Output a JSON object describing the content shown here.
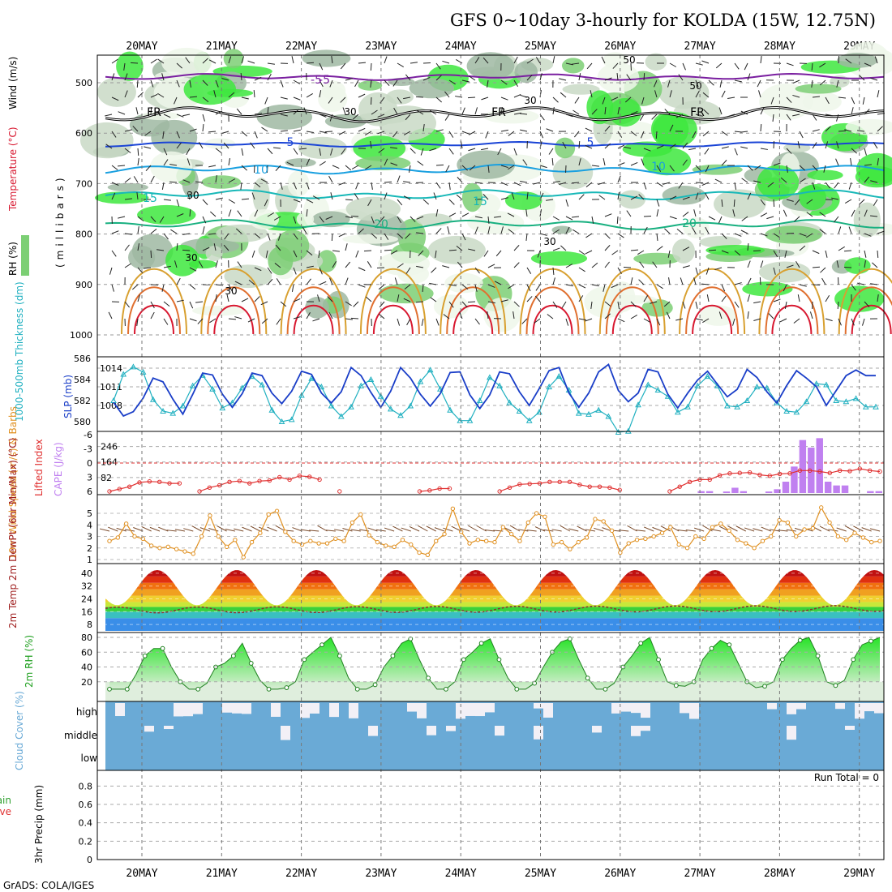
{
  "title": "GFS 0~10day 3-hourly for KOLDA (15W, 12.75N)",
  "credit": "GrADS: COLA/IGES",
  "colors": {
    "rh": [
      "#eef7ea",
      "#c9d9c6",
      "#9fb8a2",
      "#7ccf74",
      "#3ee83e"
    ],
    "temp_contours": [
      "#7a1fa0",
      "#1a44d6",
      "#1aa0e0",
      "#18b8b8",
      "#18b080",
      "#d8a030",
      "#e07030",
      "#d81830"
    ],
    "slp": "#1a3ec8",
    "thickness": "#20b0c0",
    "lifted": "#e03030",
    "cape": "#c080f0",
    "wind_speed": "#e09020",
    "barbs": "#7a4a2a",
    "rh2m": "#40c040",
    "cloud": "#6aaad6",
    "cloud_clear": "#f2f0f6"
  },
  "chart_data": [
    {
      "panel": "upper-air",
      "type": "heatmap",
      "x": [
        "20MAY",
        "21MAY",
        "22MAY",
        "23MAY",
        "24MAY",
        "25MAY",
        "26MAY",
        "27MAY",
        "28MAY",
        "29MAY"
      ],
      "ylabel": "(millibars)",
      "yticks": [
        "500",
        "600",
        "700",
        "800",
        "900",
        "1000"
      ],
      "label_rh": "RH (%)",
      "label_temp": "Temperature (°C)",
      "label_wind": "Wind (m/s)",
      "contour_labels": [
        "-5",
        "-5",
        "FR",
        "FR",
        "FR",
        "5",
        "5",
        "10",
        "10",
        "15",
        "15",
        "20",
        "20",
        "30",
        "30",
        "30",
        "30",
        "30",
        "30",
        "50",
        "50"
      ]
    },
    {
      "panel": "slp-thickness",
      "type": "line",
      "y1label": "1000-500mb Thickness (dm)",
      "y2label": "SLP (mb)",
      "y1ticks": [
        "586",
        "584",
        "582",
        "580"
      ],
      "y2ticks": [
        "1014",
        "1011",
        "1008"
      ],
      "slp": [
        1008.5,
        1006.3,
        1007.0,
        1009.2,
        1012.4,
        1011.8,
        1009.0,
        1006.6,
        1009.8,
        1013.2,
        1012.9,
        1009.8,
        1007.7,
        1009.9,
        1013.2,
        1012.8,
        1010.0,
        1008.3,
        1010.3,
        1013.5,
        1013.0,
        1010.0,
        1008.4,
        1010.2,
        1014.1,
        1012.8,
        1010.1,
        1007.7,
        1010.3,
        1014.1,
        1012.4,
        1009.8,
        1007.9,
        1009.9,
        1013.3,
        1013.4,
        1009.7,
        1007.5,
        1009.7,
        1013.4,
        1013.1,
        1010.2,
        1008.0,
        1010.7,
        1013.6,
        1014.1,
        1010.0,
        1007.7,
        1010.0,
        1013.4,
        1014.6,
        1010.4,
        1008.6,
        1010.0,
        1013.8,
        1013.4,
        1009.8,
        1007.6,
        1010.0,
        1012.1,
        1013.5,
        1011.4,
        1009.4,
        1010.6,
        1013.8,
        1012.5,
        1010.2,
        1008.4,
        1011.2,
        1013.6,
        1012.4,
        1011.0,
        1008.0,
        1010.4,
        1012.8,
        1013.7,
        1012.8,
        1012.8
      ],
      "thickness": [
        582.0,
        584.5,
        585.2,
        584.7,
        582.1,
        581.0,
        580.8,
        581.5,
        583.4,
        584.4,
        583.1,
        581.3,
        581.8,
        583.2,
        584.3,
        583.5,
        581.1,
        580.0,
        580.2,
        582.5,
        584.1,
        583.3,
        581.5,
        580.5,
        581.4,
        583.4,
        584.0,
        582.4,
        581.2,
        580.6,
        581.5,
        583.8,
        584.9,
        583.1,
        581.1,
        580.1,
        580.1,
        582.0,
        584.2,
        583.4,
        581.8,
        581.0,
        580.1,
        580.9,
        583.3,
        584.3,
        583.0,
        580.8,
        580.7,
        581.1,
        580.5,
        579.0,
        579.1,
        581.6,
        583.5,
        583.0,
        582.4,
        580.9,
        581.4,
        583.4,
        584.3,
        583.4,
        581.5,
        581.4,
        582.0,
        583.3,
        583.2,
        581.8,
        581.0,
        580.9,
        581.9,
        583.6,
        583.5,
        582.0,
        581.9,
        582.2,
        581.4,
        581.4
      ]
    },
    {
      "panel": "stability",
      "type": "line",
      "y1label": "Lifted Index",
      "y2label": "CAPE (J/kg)",
      "y1ticks": [
        "-6",
        "-3",
        "0",
        "3",
        "6"
      ],
      "y2ticks": [
        "246",
        "164",
        "82"
      ],
      "lifted_index": [
        6,
        5.5,
        5.0,
        4.1,
        3.9,
        4.0,
        4.3,
        4.3,
        null,
        6,
        5.2,
        4.7,
        4.0,
        3.8,
        4.3,
        3.8,
        3.7,
        3.0,
        3.5,
        2.7,
        2.9,
        3.5,
        null,
        6,
        null,
        null,
        null,
        null,
        null,
        null,
        null,
        6,
        5.8,
        5.4,
        5.4,
        null,
        null,
        null,
        null,
        6,
        5.2,
        4.5,
        4.4,
        4.3,
        4.0,
        4.0,
        4.0,
        4.6,
        5.0,
        5.0,
        5.2,
        5.7,
        null,
        null,
        null,
        null,
        6,
        5.0,
        4.0,
        3.5,
        3.5,
        2.6,
        2.2,
        2.1,
        2.0,
        2.5,
        2.7,
        2.3,
        2.2,
        1.6,
        1.6,
        1.8,
        2.1,
        1.6,
        1.7,
        1.2,
        1.6,
        1.8
      ],
      "cape": [
        0,
        0,
        0,
        0,
        0,
        0,
        0,
        0,
        0,
        0,
        0,
        0,
        0,
        0,
        0,
        0,
        0,
        0,
        0,
        0,
        0,
        0,
        0,
        0,
        0,
        0,
        0,
        0,
        0,
        0,
        0,
        0,
        0,
        0,
        0,
        0,
        0,
        0,
        0,
        0,
        0,
        0,
        0,
        0,
        0,
        0,
        0,
        0,
        0,
        0,
        0,
        0,
        0,
        0,
        0,
        0,
        0,
        0,
        0,
        0,
        0,
        0,
        0,
        0,
        0,
        0,
        0,
        0,
        0,
        0,
        10,
        10,
        0,
        8,
        28,
        10,
        0,
        0,
        8,
        20,
        60,
        140,
        280,
        240,
        290,
        60,
        40,
        40,
        0,
        0,
        10,
        10
      ]
    },
    {
      "panel": "wind",
      "type": "line",
      "ylabel": "10m Wind Speed (m/s) & Barbs",
      "yticks": [
        "5",
        "4",
        "3",
        "2",
        "1"
      ],
      "speed": [
        2.6,
        2.9,
        4.1,
        3.0,
        2.8,
        2.2,
        2.0,
        2.1,
        1.9,
        1.7,
        1.5,
        3.0,
        4.8,
        3.0,
        2.1,
        2.7,
        1.2,
        2.5,
        3.3,
        4.9,
        5.2,
        3.4,
        2.6,
        2.3,
        2.6,
        2.4,
        2.4,
        2.8,
        2.6,
        4.2,
        4.9,
        3.1,
        2.5,
        2.2,
        2.1,
        2.7,
        2.3,
        1.6,
        1.4,
        2.6,
        3.2,
        5.4,
        3.4,
        2.4,
        2.7,
        2.6,
        2.5,
        3.8,
        3.2,
        2.6,
        4.2,
        5.0,
        4.7,
        2.3,
        2.5,
        1.9,
        2.5,
        2.9,
        4.5,
        4.3,
        3.5,
        1.6,
        2.4,
        2.7,
        2.8,
        3.0,
        3.3,
        3.8,
        2.3,
        2.0,
        3.0,
        2.8,
        3.8,
        4.1,
        3.5,
        2.7,
        2.4,
        2.0,
        2.6,
        3.0,
        4.4,
        4.2,
        3.0,
        3.6,
        3.7,
        5.5,
        4.2,
        3.0,
        2.7,
        3.3,
        2.9,
        2.5,
        2.6
      ]
    },
    {
      "panel": "temperature",
      "type": "area",
      "ylabel": "2m Temp 2m DewPt (6hr Min/Max) (°C)",
      "yticks": [
        "40",
        "32",
        "24",
        "16",
        "8"
      ]
    },
    {
      "panel": "rh2m",
      "type": "area",
      "ylabel": "2m RH (%)",
      "yticks": [
        "80",
        "60",
        "40",
        "20"
      ],
      "rh": [
        10,
        10,
        10,
        30,
        55,
        65,
        65,
        40,
        20,
        10,
        10,
        18,
        40,
        45,
        55,
        72,
        45,
        22,
        10,
        10,
        12,
        20,
        50,
        60,
        70,
        80,
        55,
        25,
        10,
        10,
        16,
        40,
        55,
        72,
        78,
        50,
        25,
        10,
        10,
        20,
        50,
        60,
        72,
        78,
        50,
        25,
        10,
        10,
        18,
        40,
        60,
        74,
        78,
        50,
        25,
        10,
        10,
        18,
        40,
        55,
        72,
        80,
        50,
        20,
        15,
        14,
        20,
        50,
        65,
        76,
        70,
        45,
        20,
        12,
        14,
        20,
        50,
        65,
        76,
        80,
        55,
        20,
        15,
        22,
        50,
        70,
        75,
        80
      ]
    },
    {
      "panel": "cloud",
      "type": "heatmap",
      "ylabel": "Cloud Cover (%)",
      "levels": [
        "high",
        "middle",
        "low"
      ]
    },
    {
      "panel": "precip",
      "type": "bar",
      "ylabel": "3hr Precip (mm)",
      "legend": [
        "Total / Rain",
        "Convective"
      ],
      "yticks": [
        "0.8",
        "0.6",
        "0.4",
        "0.2",
        "0"
      ],
      "run_total": "Run Total = 0"
    }
  ]
}
